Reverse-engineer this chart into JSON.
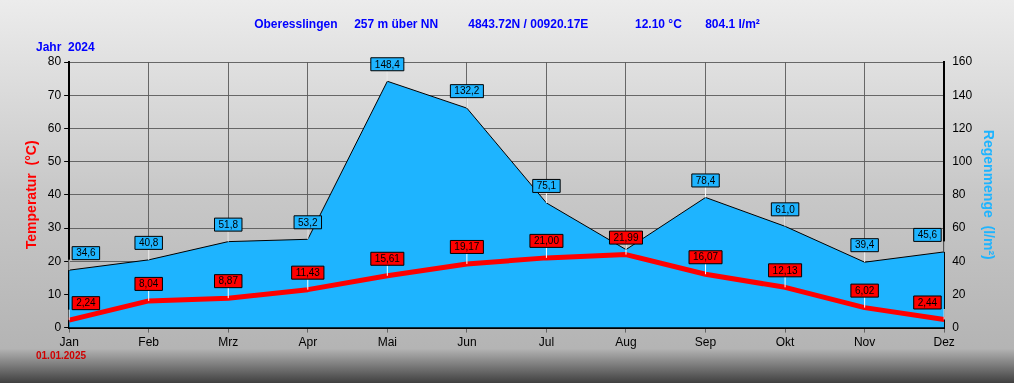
{
  "chart_data": {
    "type": "line",
    "title": "Oberesslingen     257 m über NN         4843.72N / 00920.17E              12.10 °C       804.1 l/m²",
    "subtitle": "Jahr  2024",
    "ylabel": "Temperatur  (°C)",
    "y2label": "Regenmenge  (l/m²)",
    "categories": [
      "Jan",
      "Feb",
      "Mrz",
      "Apr",
      "Mai",
      "Jun",
      "Jul",
      "Aug",
      "Sep",
      "Okt",
      "Nov",
      "Dez"
    ],
    "series": [
      {
        "type": "area",
        "axis": "y2",
        "color": "#1eb4ff",
        "values": [
          34.6,
          40.8,
          51.8,
          53.2,
          148.4,
          132.2,
          75.1,
          47,
          78.4,
          61.0,
          39.4,
          45.6
        ],
        "value_labels": [
          "34,6",
          "40,8",
          "51,8",
          "53,2",
          "148,4",
          "132,2",
          "75,1",
          null,
          "78,4",
          "61,0",
          "39,4",
          "45,6"
        ]
      },
      {
        "color": "#ff0000",
        "values": [
          2.24,
          8.04,
          8.87,
          11.43,
          15.61,
          19.17,
          21.0,
          21.99,
          16.07,
          12.13,
          6.02,
          2.44
        ],
        "value_labels": [
          "2,24",
          "8,04",
          "8,87",
          "11,43",
          "15,61",
          "19,17",
          "21,00",
          "21,99",
          "16,07",
          "12,13",
          "6,02",
          "2,44"
        ]
      }
    ],
    "ylim": [
      0,
      80
    ],
    "yticks": [
      0,
      10,
      20,
      30,
      40,
      50,
      60,
      70,
      80
    ],
    "y2lim": [
      0,
      160
    ],
    "y2ticks": [
      0,
      20,
      40,
      60,
      80,
      100,
      120,
      140,
      160
    ],
    "grid": true,
    "legend": false,
    "marker": "none",
    "annotations": [
      "01.01.2025"
    ]
  }
}
